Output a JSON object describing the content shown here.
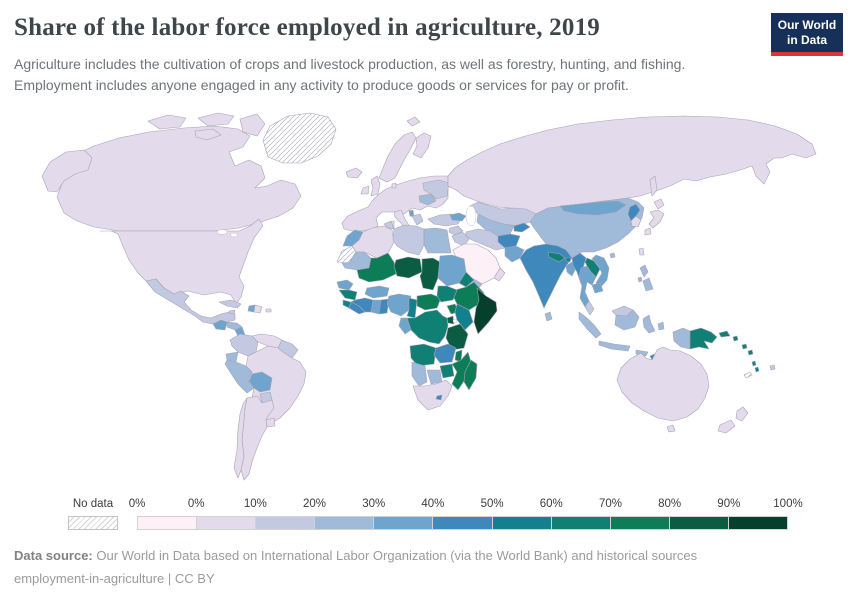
{
  "header": {
    "title": "Share of the labor force employed in agriculture, 2019",
    "subtitle_line1": "Agriculture includes the cultivation of crops and livestock production, as well as forestry, hunting, and fishing.",
    "subtitle_line2": "Employment includes anyone engaged in any activity to produce goods or services for pay or profit.",
    "logo": {
      "line1": "Our World",
      "line2": "in Data",
      "bg_color": "#16305a",
      "bar_color": "#d23a38"
    }
  },
  "legend": {
    "no_data_label": "No data",
    "tick_labels": [
      "0%",
      "0%",
      "10%",
      "20%",
      "30%",
      "40%",
      "50%",
      "60%",
      "70%",
      "80%",
      "90%",
      "100%"
    ]
  },
  "footer": {
    "source_label": "Data source:",
    "source_text": " Our World in Data based on International Labor Organization (via the World Bank) and historical sources",
    "note_text": "employment-in-agriculture | CC BY"
  },
  "map": {
    "ocean_color": "#ffffff",
    "border_color": "#a9a2b5",
    "no_data_hatch_color": "#cccccc"
  },
  "chart_data": {
    "type": "choropleth",
    "title": "Share of the labor force employed in agriculture, 2019",
    "unit": "% of labor force employed in agriculture",
    "year": 2019,
    "legend_position": "bottom",
    "bins": [
      {
        "label": "No data",
        "color": "hatch"
      },
      {
        "label": "0%",
        "color": "#fdf1f7"
      },
      {
        "label": "0-10%",
        "color": "#e3dbec"
      },
      {
        "label": "10-20%",
        "color": "#c4c9e2"
      },
      {
        "label": "20-30%",
        "color": "#a0bada"
      },
      {
        "label": "30-40%",
        "color": "#6fa4cd"
      },
      {
        "label": "40-50%",
        "color": "#3e88bc"
      },
      {
        "label": "50-60%",
        "color": "#12818d"
      },
      {
        "label": "60-70%",
        "color": "#0f8073"
      },
      {
        "label": "70-80%",
        "color": "#0d7d58"
      },
      {
        "label": "80-90%",
        "color": "#0a5d42"
      },
      {
        "label": "90-100%",
        "color": "#06402c"
      }
    ],
    "regions": {
      "greenland": "No data",
      "western-sahara": "No data",
      "new-caledonia": "No data",
      "canada": "0-10%",
      "usa": "0-10%",
      "mexico": "10-20%",
      "guatemala": "30-40%",
      "honduras": "20-30%",
      "nicaragua": "30-40%",
      "costa-rica-panama": "10-20%",
      "cuba": "10-20%",
      "jamaica": "10-20%",
      "haiti": "30-40%",
      "dominican-republic": "0-10%",
      "puerto-rico": "0-10%",
      "colombia": "10-20%",
      "venezuela": "0-10%",
      "guyanas": "10-20%",
      "ecuador": "20-30%",
      "peru": "20-30%",
      "brazil": "0-10%",
      "bolivia": "30-40%",
      "paraguay": "10-20%",
      "uruguay": "0-10%",
      "argentina": "0-10%",
      "chile": "0-10%",
      "iceland": "0-10%",
      "europe": "0-10%",
      "ukraine": "10-20%",
      "romania": "20-30%",
      "albania": "30-40%",
      "greece": "10-20%",
      "turkey": "10-20%",
      "russia": "0-10%",
      "georgia-azerbaijan": "30-40%",
      "kazakhstan": "10-20%",
      "uzbekistan-turkmenistan": "20-30%",
      "kyrgyzstan-tajikistan": "40-50%",
      "afghanistan": "40-50%",
      "pakistan": "30-40%",
      "india": "40-50%",
      "nepal": "60-70%",
      "bhutan": "50-60%",
      "bangladesh": "30-40%",
      "sri-lanka": "20-30%",
      "china": "20-30%",
      "mongolia": "30-40%",
      "north-korea": "40-50%",
      "south-korea": "0-10%",
      "japan": "0-10%",
      "taiwan": "0-10%",
      "myanmar": "40-50%",
      "laos": "60-70%",
      "thailand": "30-40%",
      "vietnam": "30-40%",
      "cambodia": "30-40%",
      "malaysia": "10-20%",
      "indonesia": "20-30%",
      "philippines": "20-30%",
      "papua-new-guinea": "60-70%",
      "timor-leste": "40-50%",
      "solomon-islands": "60-70%",
      "vanuatu": "50-60%",
      "fiji": "10-20%",
      "australia": "0-10%",
      "new-zealand": "0-10%",
      "morocco": "30-40%",
      "algeria": "0-10%",
      "tunisia": "10-20%",
      "libya": "10-20%",
      "egypt": "20-30%",
      "mauritania": "20-30%",
      "mali": "70-80%",
      "niger": "80-90%",
      "chad": "80-90%",
      "sudan": "30-40%",
      "eritrea": "60-70%",
      "ethiopia": "70-80%",
      "somalia": "90-100%",
      "senegal": "30-40%",
      "guinea": "60-70%",
      "sierra-leone": "50-60%",
      "liberia": "40-50%",
      "cote-divoire": "40-50%",
      "ghana": "30-40%",
      "togo-benin": "40-50%",
      "burkina-faso": "30-40%",
      "nigeria": "30-40%",
      "cameroon": "50-60%",
      "central-african-republic": "70-80%",
      "south-sudan": "60-70%",
      "uganda": "70-80%",
      "kenya": "50-60%",
      "rwanda-burundi": "80-90%",
      "dr-congo": "60-70%",
      "congo-gabon": "30-40%",
      "angola": "60-70%",
      "zambia": "40-50%",
      "tanzania": "80-90%",
      "malawi": "70-80%",
      "mozambique": "70-80%",
      "zimbabwe": "60-70%",
      "botswana": "20-30%",
      "namibia": "20-30%",
      "south-africa": "0-10%",
      "lesotho": "40-50%",
      "madagascar": "70-80%",
      "arabian-peninsula": "0%",
      "yemen": "20-30%",
      "oman": "0-10%",
      "iraq": "10-20%",
      "iran": "10-20%",
      "syria": "10-20%"
    }
  }
}
